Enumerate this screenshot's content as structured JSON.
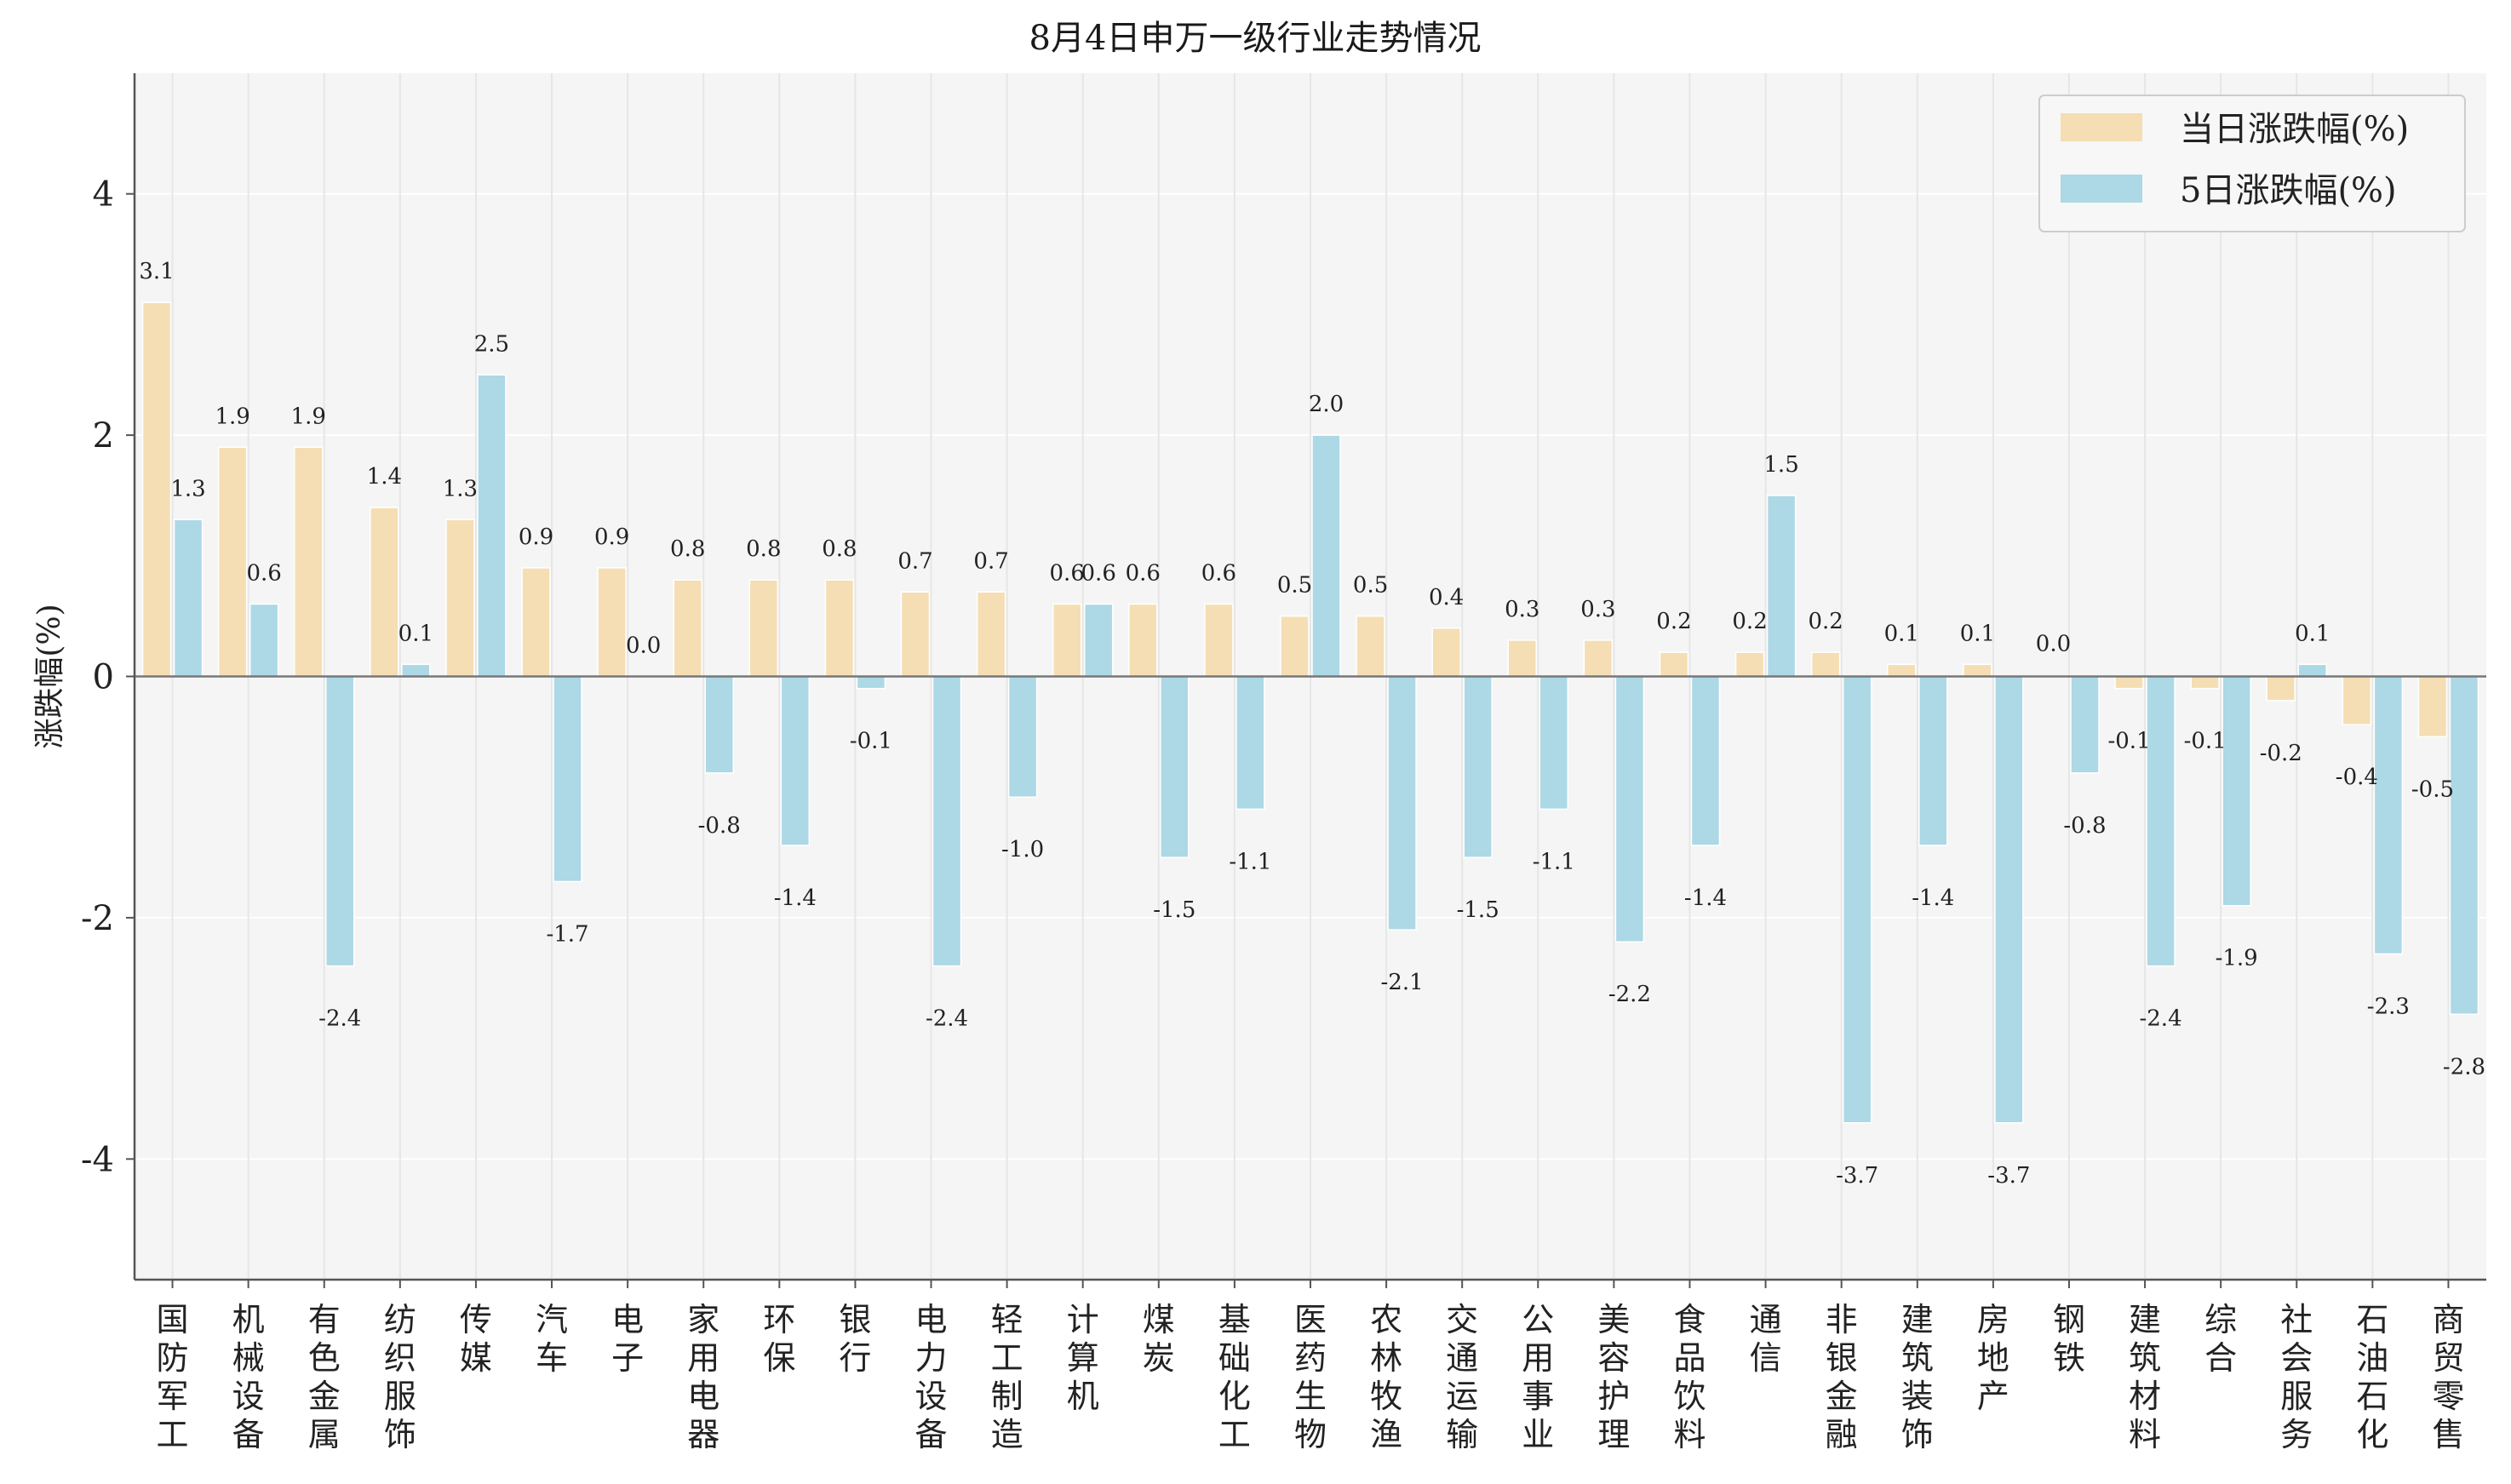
{
  "chart_data": {
    "type": "bar",
    "title": "8月4日申万一级行业走势情况",
    "xlabel": "",
    "ylabel": "涨跌幅(%)",
    "ylim": [
      -5,
      5
    ],
    "yticks": [
      -4,
      -2,
      0,
      2,
      4
    ],
    "grid": true,
    "legend_position": "top-right",
    "categories": [
      "国防军工",
      "机械设备",
      "有色金属",
      "纺织服饰",
      "传媒",
      "汽车",
      "电子",
      "家用电器",
      "环保",
      "银行",
      "电力设备",
      "轻工制造",
      "计算机",
      "煤炭",
      "基础化工",
      "医药生物",
      "农林牧渔",
      "交通运输",
      "公用事业",
      "美容护理",
      "食品饮料",
      "通信",
      "非银金融",
      "建筑装饰",
      "房地产",
      "钢铁",
      "建筑材料",
      "综合",
      "社会服务",
      "石油石化",
      "商贸零售"
    ],
    "series": [
      {
        "name": "当日涨跌幅(%)",
        "color": "#f5deb3",
        "values": [
          3.1,
          1.9,
          1.9,
          1.4,
          1.3,
          0.9,
          0.9,
          0.8,
          0.8,
          0.8,
          0.7,
          0.7,
          0.6,
          0.6,
          0.6,
          0.5,
          0.5,
          0.4,
          0.3,
          0.3,
          0.2,
          0.2,
          0.2,
          0.1,
          0.1,
          0.0,
          -0.1,
          -0.1,
          -0.2,
          -0.4,
          -0.5
        ]
      },
      {
        "name": "5日涨跌幅(%)",
        "color": "#add8e6",
        "values": [
          1.3,
          0.6,
          -2.4,
          0.1,
          2.5,
          -1.7,
          0.0,
          -0.8,
          -1.4,
          -0.1,
          -2.4,
          -1.0,
          0.6,
          -1.5,
          -1.1,
          2.0,
          -2.1,
          -1.5,
          -1.1,
          -2.2,
          -1.4,
          1.5,
          -3.7,
          -1.4,
          -3.7,
          -0.8,
          -2.4,
          -1.9,
          0.1,
          -2.3,
          -2.8
        ]
      }
    ],
    "labels": {
      "s0": [
        "3.1",
        "1.9",
        "1.9",
        "1.4",
        "1.3",
        "0.9",
        "0.9",
        "0.8",
        "0.8",
        "0.8",
        "0.7",
        "0.7",
        "0.6",
        "0.6",
        "0.6",
        "0.5",
        "0.5",
        "0.4",
        "0.3",
        "0.3",
        "0.2",
        "0.2",
        "0.2",
        "0.1",
        "0.1",
        "",
        "-0.1",
        "-0.1",
        "-0.2",
        "-0.4",
        "-0.5"
      ],
      "s1": [
        "1.3",
        "0.6",
        "-2.4",
        "0.1",
        "2.5",
        "-1.7",
        "0.0",
        "-0.8",
        "-1.4",
        "-0.1",
        "-2.4",
        "-1.0",
        "0.6",
        "-1.5",
        "-1.1",
        "2.0",
        "-2.1",
        "-1.5",
        "-1.1",
        "-2.2",
        "-1.4",
        "1.5",
        "-3.7",
        "-1.4",
        "-3.7",
        "-0.8",
        "-2.4",
        "-1.9",
        "0.1",
        "-2.3",
        "-2.8"
      ],
      "extra": "0.0"
    }
  }
}
